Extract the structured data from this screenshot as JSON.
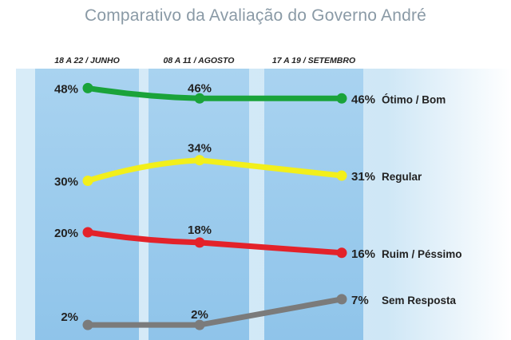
{
  "chart_data": {
    "type": "line",
    "title": "Comparativo da Avaliação do Governo André",
    "categories": [
      "18 A 22 / JUNHO",
      "08 A 11 / AGOSTO",
      "17 A 19 / SETEMBRO"
    ],
    "ylim": [
      0,
      50
    ],
    "series": [
      {
        "name": "Ótimo / Bom",
        "color": "#1aa33a",
        "values": [
          48,
          46,
          46
        ],
        "labels": [
          "48%",
          "46%",
          "46%"
        ]
      },
      {
        "name": "Regular",
        "color": "#f2ef1b",
        "values": [
          30,
          34,
          31
        ],
        "labels": [
          "30%",
          "34%",
          "31%"
        ]
      },
      {
        "name": "Ruim / Péssimo",
        "color": "#e3222a",
        "values": [
          20,
          18,
          16
        ],
        "labels": [
          "20%",
          "18%",
          "16%"
        ]
      },
      {
        "name": "Sem Resposta",
        "color": "#7b7b7b",
        "values": [
          2,
          2,
          7
        ],
        "labels": [
          "2%",
          "2%",
          "7%"
        ]
      }
    ]
  }
}
